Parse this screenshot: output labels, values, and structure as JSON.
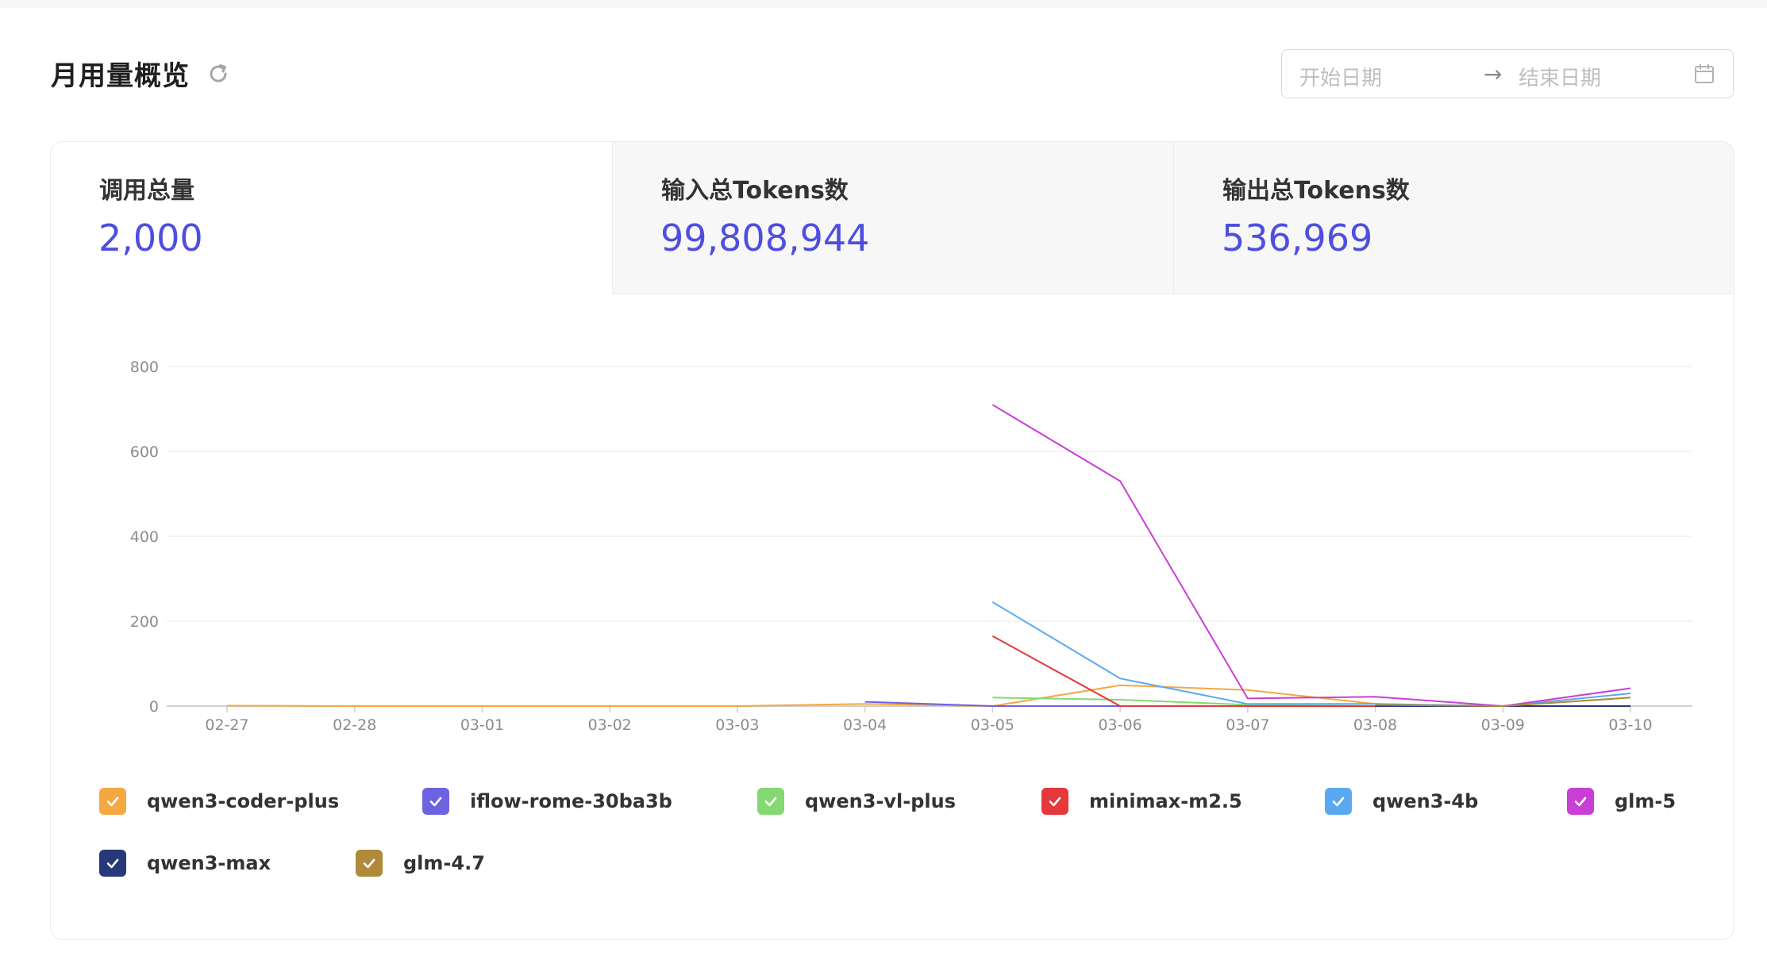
{
  "header": {
    "title": "月用量概览",
    "refresh_icon": "refresh-icon"
  },
  "date_range": {
    "start_placeholder": "开始日期",
    "separator": "→",
    "end_placeholder": "结束日期",
    "icon": "calendar-icon"
  },
  "stats": [
    {
      "label": "调用总量",
      "value": "2,000"
    },
    {
      "label": "输入总Tokens数",
      "value": "99,808,944"
    },
    {
      "label": "输出总Tokens数",
      "value": "536,969"
    }
  ],
  "chart_data": {
    "type": "line",
    "categories": [
      "02-27",
      "02-28",
      "03-01",
      "03-02",
      "03-03",
      "03-04",
      "03-05",
      "03-06",
      "03-07",
      "03-08",
      "03-09",
      "03-10"
    ],
    "ylim": [
      0,
      800
    ],
    "yticks": [
      0,
      200,
      400,
      600,
      800
    ],
    "grid": true,
    "legend": "bottom",
    "series": [
      {
        "name": "qwen3-coder-plus",
        "color": "#f5a742",
        "values": [
          1,
          0,
          0,
          0,
          0,
          5,
          0,
          49,
          38,
          5,
          0,
          20
        ]
      },
      {
        "name": "iflow-rome-30ba3b",
        "color": "#6c63e0",
        "values": [
          null,
          null,
          null,
          null,
          null,
          10,
          0,
          0,
          0,
          0,
          0,
          0
        ]
      },
      {
        "name": "qwen3-vl-plus",
        "color": "#85d872",
        "values": [
          null,
          null,
          null,
          null,
          null,
          null,
          20,
          15,
          3,
          0,
          0,
          0
        ]
      },
      {
        "name": "minimax-m2.5",
        "color": "#e5383b",
        "values": [
          null,
          null,
          null,
          null,
          null,
          null,
          165,
          0,
          0,
          0,
          0,
          0
        ]
      },
      {
        "name": "qwen3-4b",
        "color": "#5aa9f0",
        "values": [
          null,
          null,
          null,
          null,
          null,
          null,
          245,
          65,
          5,
          5,
          0,
          30
        ]
      },
      {
        "name": "glm-5",
        "color": "#c93fd6",
        "values": [
          null,
          null,
          null,
          null,
          null,
          null,
          710,
          530,
          18,
          22,
          0,
          42
        ]
      },
      {
        "name": "qwen3-max",
        "color": "#273978",
        "values": [
          null,
          null,
          null,
          null,
          null,
          null,
          null,
          null,
          null,
          0,
          0,
          0
        ]
      },
      {
        "name": "glm-4.7",
        "color": "#b08a3a",
        "values": [
          null,
          null,
          null,
          null,
          null,
          null,
          null,
          null,
          null,
          3,
          0,
          20
        ]
      }
    ]
  }
}
